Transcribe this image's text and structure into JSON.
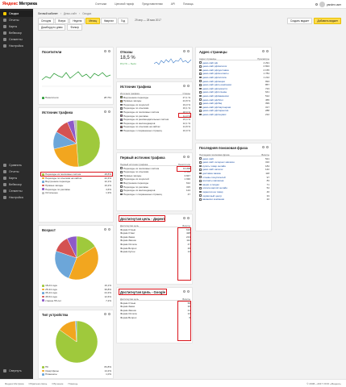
{
  "app": {
    "logo_brand": "Яндекс",
    "logo_product": "Метрика"
  },
  "topnav": [
    "Счетчики",
    "Ценовой тариф",
    "Представителям",
    "API",
    "Помощь"
  ],
  "user": {
    "name": "yandex.user"
  },
  "sidebar": {
    "items": [
      {
        "label": "Сводка",
        "active": true
      },
      {
        "label": "Отчеты"
      },
      {
        "label": "Карты"
      },
      {
        "label": "Вебвизор"
      },
      {
        "label": "Сегменты"
      },
      {
        "label": "Настройка"
      }
    ],
    "lower": [
      {
        "label": "Сравнить"
      },
      {
        "label": "Отчеты"
      },
      {
        "label": "Карты"
      },
      {
        "label": "Вебвизор"
      },
      {
        "label": "Сегменты"
      },
      {
        "label": "Настройка"
      }
    ],
    "bottom": "Свернуть"
  },
  "breadcrumbs": [
    "Личный кабинет",
    "Демо-сайт",
    "Сводка"
  ],
  "period": {
    "options": [
      "Сегодня",
      "Вчера",
      "Неделя",
      "Месяц",
      "Квартал",
      "Год"
    ],
    "active": 3,
    "range": "29 апр — 28 мая 2017"
  },
  "controls": {
    "dash": "Дашборд по дням",
    "filter": "Фильтр",
    "add": "Создать виджет",
    "export": "Добавить виджет"
  },
  "widgets": {
    "visitors": {
      "title": "Посетители",
      "legend": "Посетители",
      "value": "28 761"
    },
    "bounce": {
      "title": "Отказы",
      "value": "18,5 %",
      "sub": "15,2 % — было"
    },
    "pages": {
      "title": "Адрес страницы",
      "col1": "Адрес страницы",
      "col2": "Просмотры",
      "rows": [
        {
          "label": "демо-сайт.рф",
          "val": "4 291"
        },
        {
          "label": "демо-сайт.рф/каталог",
          "val": "2 824"
        },
        {
          "label": "демо-сайт.рф/доставка",
          "val": "2 155"
        },
        {
          "label": "демо-сайт.рф/контакты",
          "val": "1 784"
        },
        {
          "label": "демо-сайт.рф/оплата",
          "val": "1 212"
        },
        {
          "label": "демо-сайт.рф/акции",
          "val": "994"
        },
        {
          "label": "демо-сайт.рф/о-компании",
          "val": "857"
        },
        {
          "label": "демо-сайт.рф/новости",
          "val": "723"
        },
        {
          "label": "демо-сайт.рф/отзывы",
          "val": "641"
        },
        {
          "label": "демо-сайт.рф/вакансии",
          "val": "512"
        },
        {
          "label": "демо-сайт.рф/блог",
          "val": "455"
        },
        {
          "label": "демо-сайт.рф/faq",
          "val": "399"
        },
        {
          "label": "демо-сайт.рф/партнерам",
          "val": "317"
        },
        {
          "label": "демо-сайт.рф/гарантия",
          "val": "288"
        },
        {
          "label": "демо-сайт.рф/сервис",
          "val": "212"
        }
      ]
    },
    "sources_table": {
      "title": "Источник трафика",
      "col1": "Источник трафика",
      "col2": "Отказы",
      "rows": [
        {
          "label": "Внутренние переходы",
          "val": "27,1 %",
          "color": "#9fc93c"
        },
        {
          "label": "Прямые заходы",
          "val": "24,8 %",
          "color": "#f2a61f"
        },
        {
          "label": "Переходы из соцсетей",
          "val": "19,0 %",
          "color": "#6ca6d9"
        },
        {
          "label": "Переходы по ссылкам",
          "val": "16,1 %",
          "color": "#c0c0c0"
        },
        {
          "label": "Переходы из поисковых систем",
          "val": "18,9 %",
          "color": "#3d7cc9"
        },
        {
          "label": "Переходы по рекламе",
          "val": "11,3 %",
          "color": "#e57fb0"
        },
        {
          "label": "Переходы из рекомендательных систем",
          "val": "15,4 %",
          "color": "#8e5ac8"
        },
        {
          "label": "Переходы из мессенджеров",
          "val": "12,1 %",
          "color": "#57b36a"
        },
        {
          "label": "Переходы по ссылкам на сайтах",
          "val": "14,8 %",
          "color": "#d45252"
        },
        {
          "label": "Переходы с сохраненных страниц",
          "val": "10,9 %",
          "color": "#999999"
        }
      ]
    },
    "sources_pie": {
      "title": "Источник трафика",
      "legend": [
        {
          "label": "Переходы из поисковых систем",
          "val": "48,8%",
          "color": "#9fc93c"
        },
        {
          "label": "Переходы по ссылкам на сайтах",
          "val": "22,4%",
          "color": "#f2a61f"
        },
        {
          "label": "Внутренние переходы",
          "val": "12,1%",
          "color": "#6ca6d9"
        },
        {
          "label": "Прямые заходы",
          "val": "10,2%",
          "color": "#d45252"
        },
        {
          "label": "Переходы по рекламе",
          "val": "4,6%",
          "color": "#8e5ac8"
        },
        {
          "label": "Остальные",
          "val": "1,9%",
          "color": "#bbbbbb"
        }
      ]
    },
    "first_source": {
      "title": "Первый источник трафика",
      "col1": "Первый источник трафика",
      "col2": "Посетители",
      "rows": [
        {
          "label": "Переходы из поисковых систем",
          "val": "13 208"
        },
        {
          "label": "Переходы по ссылкам",
          "val": "4 552"
        },
        {
          "label": "Прямые заходы",
          "val": "3 847"
        },
        {
          "label": "Переходы из соцсетей",
          "val": "1 930"
        },
        {
          "label": "Внутренние переходы",
          "val": "612"
        },
        {
          "label": "Переходы по рекламе",
          "val": "315"
        },
        {
          "label": "Переходы из мессенджеров",
          "val": "124"
        },
        {
          "label": "Переходы с сохраненных страниц",
          "val": "47"
        }
      ]
    },
    "search_phrases": {
      "title": "Последняя поисковая фраза",
      "col1": "Последняя поисковая фраза",
      "col2": "Визиты",
      "rows": [
        {
          "label": "демо сайт",
          "val": "521"
        },
        {
          "label": "демо сайт интернет магазин",
          "val": "310"
        },
        {
          "label": "купить товар онлайн",
          "val": "184"
        },
        {
          "label": "демо сайт каталог",
          "val": "142"
        },
        {
          "label": "доставка заказа",
          "val": "118"
        },
        {
          "label": "отзывы покупателей",
          "val": "97"
        },
        {
          "label": "контакты магазина",
          "val": "83"
        },
        {
          "label": "акции и скидки",
          "val": "71"
        },
        {
          "label": "оплата картой онлайн",
          "val": "54"
        },
        {
          "label": "гарантия на товар",
          "val": "46"
        },
        {
          "label": "сервисный центр",
          "val": "33"
        },
        {
          "label": "вакансии компании",
          "val": "22"
        }
      ]
    },
    "goal_direct": {
      "title": "Достигнутая цель - Директ",
      "col1": "Достигнутая цель",
      "col2": "Визиты",
      "rows": [
        {
          "label": "Форма Отзыв",
          "val": "616"
        },
        {
          "label": "Форма Ответ",
          "val": "428"
        },
        {
          "label": "Форма Заказ",
          "val": "213"
        },
        {
          "label": "Форма Звонок",
          "val": "112"
        },
        {
          "label": "Форма Оплата",
          "val": "47"
        },
        {
          "label": "Форма Вопрос",
          "val": "26"
        },
        {
          "label": "Форма Купон",
          "val": "14"
        }
      ]
    },
    "goal_google": {
      "title": "Достигнутая Цель - Google",
      "col1": "Достигнутая цель",
      "col2": "Визиты",
      "rows": [
        {
          "label": "Форма Отзыв",
          "val": "58"
        },
        {
          "label": "Форма Заказ",
          "val": "36"
        },
        {
          "label": "Форма Звонок",
          "val": "21"
        },
        {
          "label": "Форма Оплата",
          "val": "12"
        },
        {
          "label": "Форма Вопрос",
          "val": "6"
        }
      ]
    },
    "age": {
      "title": "Возраст",
      "legend": [
        {
          "label": "18-24 года",
          "val": "16,1%",
          "color": "#9fc93c"
        },
        {
          "label": "25-34 года",
          "val": "39,8%",
          "color": "#f2a61f"
        },
        {
          "label": "35-44 года",
          "val": "24,3%",
          "color": "#6ca6d9"
        },
        {
          "label": "45-54 года",
          "val": "12,6%",
          "color": "#d45252"
        },
        {
          "label": "старше 55 лет",
          "val": "7,2%",
          "color": "#8e5ac8"
        }
      ]
    },
    "devices": {
      "title": "Тип устройства",
      "legend": [
        {
          "label": "ПК",
          "val": "84,8%",
          "color": "#9fc93c"
        },
        {
          "label": "Смартфоны",
          "val": "14,2%",
          "color": "#f2a61f"
        },
        {
          "label": "Планшеты",
          "val": "1,0%",
          "color": "#6ca6d9"
        }
      ]
    }
  },
  "footer": {
    "links": [
      "Яндекс.Метрика",
      "Обратная связь",
      "Обучение",
      "Помощь"
    ],
    "copy": "© 2008—2017 ООО «Яндекс»"
  }
}
